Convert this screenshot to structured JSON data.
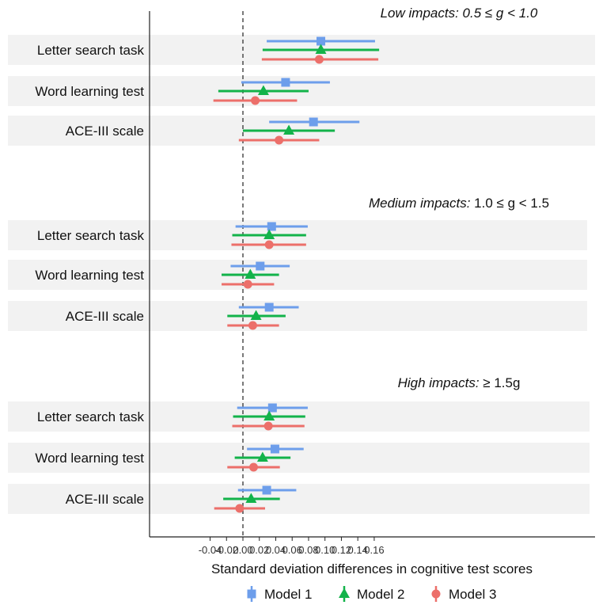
{
  "chart_data": {
    "type": "forest",
    "xlabel": "Standard deviation differences in cognitive test scores",
    "xlim": [
      -0.045,
      0.17
    ],
    "x_ticks": [
      "-0.04",
      "-0.02",
      "0.00",
      "0.02",
      "0.04",
      "0.06",
      "0.08",
      "0.10",
      "0.12",
      "0.14",
      "0.16"
    ],
    "reference_line": 0,
    "grid": false,
    "legend_position": "bottom",
    "colors": {
      "Model 1": "#6d9eeb",
      "Model 2": "#13b34a",
      "Model 3": "#ec6f6a",
      "band": "#f2f2f2"
    },
    "series": [
      {
        "name": "Model 1",
        "marker": "square",
        "legend_label": "Model 1"
      },
      {
        "name": "Model 2",
        "marker": "triangle",
        "legend_label": "Model 2"
      },
      {
        "name": "Model 3",
        "marker": "circle",
        "legend_label": "Model 3"
      }
    ],
    "panels": [
      {
        "title_italic": "Low impacts: 0.5 ≤ g < 1.0",
        "title_rest": "",
        "rows": [
          {
            "label": "Letter search task",
            "estimates": [
              {
                "model": "Model 1",
                "est": 0.095,
                "lo": 0.029,
                "hi": 0.161
              },
              {
                "model": "Model 2",
                "est": 0.095,
                "lo": 0.024,
                "hi": 0.166
              },
              {
                "model": "Model 3",
                "est": 0.093,
                "lo": 0.023,
                "hi": 0.165
              }
            ]
          },
          {
            "label": "Word learning test",
            "estimates": [
              {
                "model": "Model 1",
                "est": 0.052,
                "lo": -0.002,
                "hi": 0.106
              },
              {
                "model": "Model 2",
                "est": 0.025,
                "lo": -0.03,
                "hi": 0.08
              },
              {
                "model": "Model 3",
                "est": 0.015,
                "lo": -0.036,
                "hi": 0.066
              }
            ]
          },
          {
            "label": "ACE-III scale",
            "estimates": [
              {
                "model": "Model 1",
                "est": 0.086,
                "lo": 0.032,
                "hi": 0.142
              },
              {
                "model": "Model 2",
                "est": 0.056,
                "lo": 0.0,
                "hi": 0.112
              },
              {
                "model": "Model 3",
                "est": 0.044,
                "lo": -0.005,
                "hi": 0.093
              }
            ]
          }
        ]
      },
      {
        "title_italic": "Medium impacts:",
        "title_rest": " 1.0 ≤ g < 1.5",
        "rows": [
          {
            "label": "Letter search task",
            "estimates": [
              {
                "model": "Model 1",
                "est": 0.035,
                "lo": -0.009,
                "hi": 0.079
              },
              {
                "model": "Model 2",
                "est": 0.032,
                "lo": -0.013,
                "hi": 0.077
              },
              {
                "model": "Model 3",
                "est": 0.032,
                "lo": -0.014,
                "hi": 0.077
              }
            ]
          },
          {
            "label": "Word learning test",
            "estimates": [
              {
                "model": "Model 1",
                "est": 0.021,
                "lo": -0.015,
                "hi": 0.057
              },
              {
                "model": "Model 2",
                "est": 0.009,
                "lo": -0.026,
                "hi": 0.044
              },
              {
                "model": "Model 3",
                "est": 0.006,
                "lo": -0.026,
                "hi": 0.038
              }
            ]
          },
          {
            "label": "ACE-III scale",
            "estimates": [
              {
                "model": "Model 1",
                "est": 0.032,
                "lo": -0.005,
                "hi": 0.068
              },
              {
                "model": "Model 2",
                "est": 0.016,
                "lo": -0.019,
                "hi": 0.052
              },
              {
                "model": "Model 3",
                "est": 0.012,
                "lo": -0.019,
                "hi": 0.044
              }
            ]
          }
        ]
      },
      {
        "title_italic": "High impacts:",
        "title_rest": " ≥ 1.5g",
        "rows": [
          {
            "label": "Letter search task",
            "estimates": [
              {
                "model": "Model 1",
                "est": 0.036,
                "lo": -0.007,
                "hi": 0.079
              },
              {
                "model": "Model 2",
                "est": 0.032,
                "lo": -0.012,
                "hi": 0.076
              },
              {
                "model": "Model 3",
                "est": 0.031,
                "lo": -0.013,
                "hi": 0.075
              }
            ]
          },
          {
            "label": "Word learning test",
            "estimates": [
              {
                "model": "Model 1",
                "est": 0.039,
                "lo": 0.005,
                "hi": 0.074
              },
              {
                "model": "Model 2",
                "est": 0.024,
                "lo": -0.01,
                "hi": 0.058
              },
              {
                "model": "Model 3",
                "est": 0.013,
                "lo": -0.019,
                "hi": 0.045
              }
            ]
          },
          {
            "label": "ACE-III scale",
            "estimates": [
              {
                "model": "Model 1",
                "est": 0.029,
                "lo": -0.006,
                "hi": 0.065
              },
              {
                "model": "Model 2",
                "est": 0.01,
                "lo": -0.024,
                "hi": 0.045
              },
              {
                "model": "Model 3",
                "est": -0.004,
                "lo": -0.035,
                "hi": 0.027
              }
            ]
          }
        ]
      }
    ]
  }
}
